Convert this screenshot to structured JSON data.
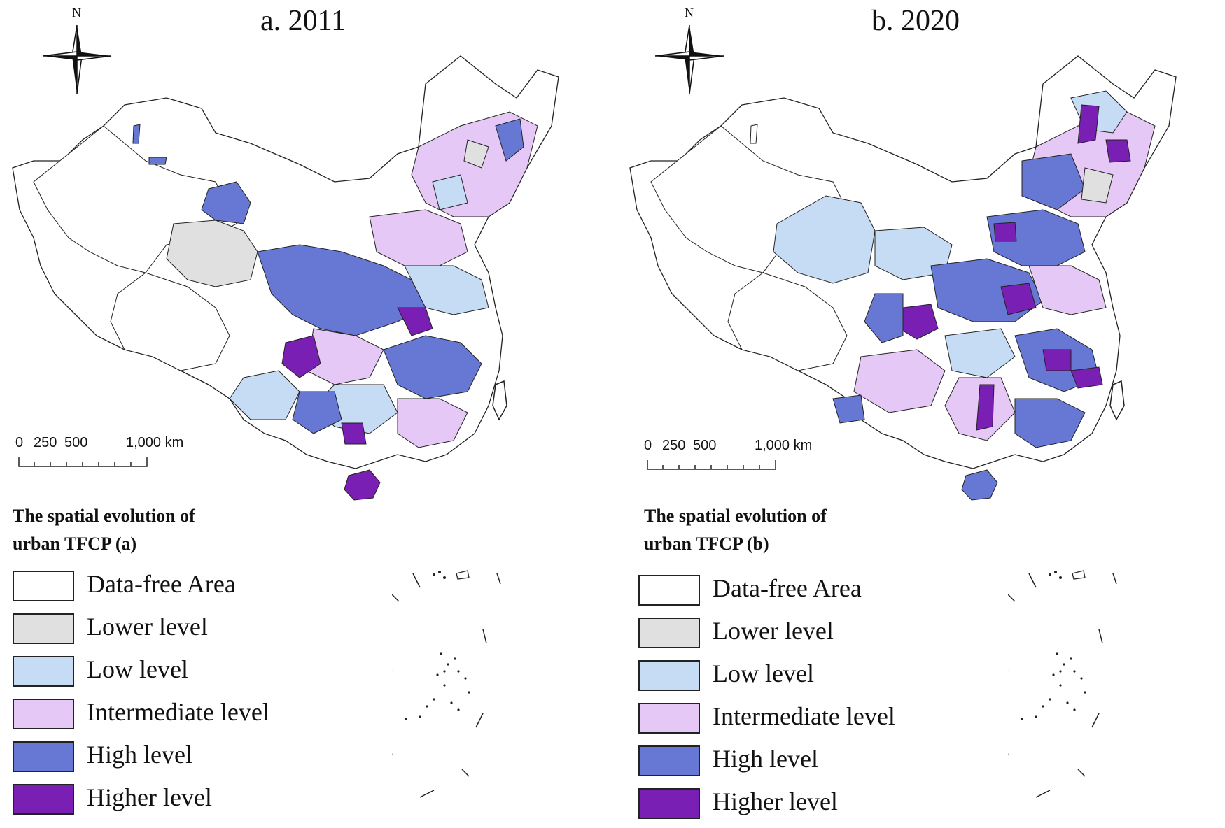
{
  "panels": [
    {
      "id": "a",
      "title": "a. 2011",
      "north_label": "N",
      "scale": {
        "labels": [
          "0",
          "250",
          "500",
          "1,000 km"
        ]
      },
      "legend_title_line1": "The spatial  evolution of",
      "legend_title_line2": "urban TFCP (a)"
    },
    {
      "id": "b",
      "title": "b. 2020",
      "north_label": "N",
      "scale": {
        "labels": [
          "0",
          "250",
          "500",
          "1,000 km"
        ]
      },
      "legend_title_line1": "The spatial  evolution of",
      "legend_title_line2": "urban TFCP (b)"
    }
  ],
  "legend": [
    {
      "label": "Data-free Area",
      "color": "#ffffff"
    },
    {
      "label": "Lower level",
      "color": "#e0e0e0"
    },
    {
      "label": "Low level",
      "color": "#c6dcf5"
    },
    {
      "label": "Intermediate level",
      "color": "#e5c8f5"
    },
    {
      "label": "High level",
      "color": "#6678d4"
    },
    {
      "label": "Higher level",
      "color": "#7a1fb3"
    }
  ]
}
